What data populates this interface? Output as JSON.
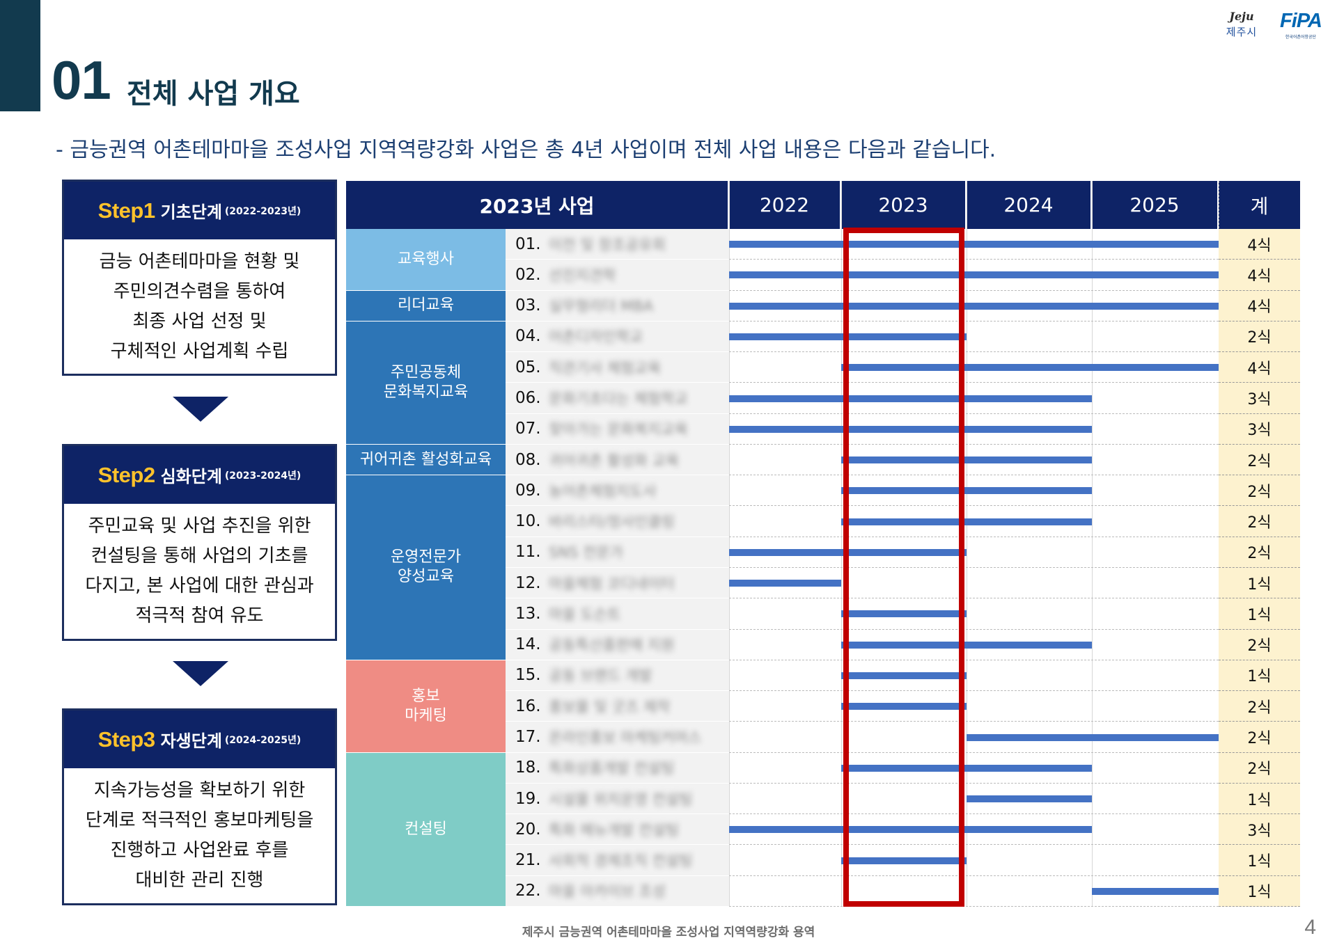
{
  "logos": {
    "jeju_script": "Jeju",
    "jeju_name": "제주시",
    "fipa_mark": "FiPA",
    "fipa_sub": "한국어촌어항공단"
  },
  "title": {
    "number": "01",
    "text": "전체 사업 개요"
  },
  "intro": "- 금능권역 어촌테마마을 조성사업 지역역량강화 사업은 총 4년 사업이며 전체 사업 내용은 다음과 같습니다.",
  "steps": [
    {
      "num": "Step1",
      "name": "기초단계",
      "period": "(2022-2023년)",
      "lines": [
        "금능 어촌테마마을 현황 및",
        "주민의견수렴을 통하여",
        "최종 사업 선정 및",
        "구체적인 사업계획 수립"
      ]
    },
    {
      "num": "Step2",
      "name": "심화단계",
      "period": "(2023-2024년)",
      "lines": [
        "주민교육 및 사업 추진을 위한",
        "컨설팅을 통해 사업의 기초를",
        "다지고, 본 사업에 대한 관심과",
        "적극적 참여 유도"
      ]
    },
    {
      "num": "Step3",
      "name": "자생단계",
      "period": "(2024-2025년)",
      "lines": [
        "지속가능성을 확보하기 위한",
        "단계로 적극적인 홍보마케팅을",
        "진행하고 사업완료 후를",
        "대비한 관리 진행"
      ]
    }
  ],
  "schedule": {
    "headers": {
      "project": "2023년 사업",
      "years": [
        "2022",
        "2023",
        "2024",
        "2025"
      ],
      "total": "계"
    },
    "highlight_year": "2023",
    "colors": {
      "header": "#0e2366",
      "bar": "#4472c4",
      "highlight": "#c00000",
      "total_bg": "#fdf2cf"
    },
    "categories": [
      {
        "lines": [
          "교육행사"
        ],
        "color": "#7cbce5",
        "rows": 2
      },
      {
        "lines": [
          "리더교육"
        ],
        "color": "#2d75b6",
        "rows": 1
      },
      {
        "lines": [
          "주민공동체",
          "문화복지교육"
        ],
        "color": "#2d75b6",
        "rows": 4
      },
      {
        "lines": [
          "귀어귀촌 활성화교육"
        ],
        "color": "#2d75b6",
        "rows": 1
      },
      {
        "lines": [
          "운영전문가",
          "양성교육"
        ],
        "color": "#2d75b6",
        "rows": 6
      },
      {
        "lines": [
          "홍보",
          "마케팅"
        ],
        "color": "#ef8c84",
        "rows": 3
      },
      {
        "lines": [
          "컨설팅"
        ],
        "color": "#7fccc6",
        "rows": 5
      }
    ],
    "rows": [
      {
        "num": "01.",
        "item": "이전 및 창조공유회",
        "total": "4식",
        "years": [
          2022,
          2023,
          2024,
          2025
        ]
      },
      {
        "num": "02.",
        "item": "선진지견학",
        "total": "4식",
        "years": [
          2022,
          2023,
          2024,
          2025
        ]
      },
      {
        "num": "03.",
        "item": "실무형리더 MBA",
        "total": "4식",
        "years": [
          2022,
          2023,
          2024,
          2025
        ]
      },
      {
        "num": "04.",
        "item": "어촌디자인학교",
        "total": "2식",
        "years": [
          2022,
          2023
        ]
      },
      {
        "num": "05.",
        "item": "직관기사 체험교육",
        "total": "4식",
        "years": [
          2023,
          2024,
          2025
        ]
      },
      {
        "num": "06.",
        "item": "문화기초다는 체험학교",
        "total": "3식",
        "years": [
          2022,
          2023,
          2024
        ]
      },
      {
        "num": "07.",
        "item": "찾아가는 문화복지교육",
        "total": "3식",
        "years": [
          2022,
          2023,
          2024
        ]
      },
      {
        "num": "08.",
        "item": "귀어귀촌 활성화 교육",
        "total": "2식",
        "years": [
          2023,
          2024
        ]
      },
      {
        "num": "09.",
        "item": "농어촌체험지도사",
        "total": "2식",
        "years": [
          2023,
          2024
        ]
      },
      {
        "num": "10.",
        "item": "바리스타/정사인클링",
        "total": "2식",
        "years": [
          2023,
          2024
        ]
      },
      {
        "num": "11.",
        "item": "SNS 전문가",
        "total": "2식",
        "years": [
          2022,
          2023
        ]
      },
      {
        "num": "12.",
        "item": "마을체험 코디네이터",
        "total": "1식",
        "years": [
          2022
        ]
      },
      {
        "num": "13.",
        "item": "마을 도슨트",
        "total": "1식",
        "years": [
          2023
        ]
      },
      {
        "num": "14.",
        "item": "공동특산품판매 지원",
        "total": "2식",
        "years": [
          2023,
          2024
        ]
      },
      {
        "num": "15.",
        "item": "공동 브랜드 개발",
        "total": "1식",
        "years": [
          2023
        ]
      },
      {
        "num": "16.",
        "item": "홍보물 및 굿즈 제작",
        "total": "2식",
        "years": [
          2023
        ]
      },
      {
        "num": "17.",
        "item": "온라인홍보 마케팅커머스",
        "total": "2식",
        "years": [
          2024,
          2025
        ]
      },
      {
        "num": "18.",
        "item": "특화상품개발 컨설팅",
        "total": "2식",
        "years": [
          2023,
          2024
        ]
      },
      {
        "num": "19.",
        "item": "시설물 위치운영 컨설팅",
        "total": "1식",
        "years": [
          2024
        ]
      },
      {
        "num": "20.",
        "item": "특화 메뉴개발 컨설팅",
        "total": "3식",
        "years": [
          2022,
          2023,
          2024
        ]
      },
      {
        "num": "21.",
        "item": "사회적 경제조직 컨설팅",
        "total": "1식",
        "years": [
          2023
        ]
      },
      {
        "num": "22.",
        "item": "마을 아카이브 조성",
        "total": "1식",
        "years": [
          2025
        ]
      }
    ]
  },
  "footer": "제주시 금능권역 어촌테마마을 조성사업 지역역량강화 용역",
  "page_number": "4"
}
